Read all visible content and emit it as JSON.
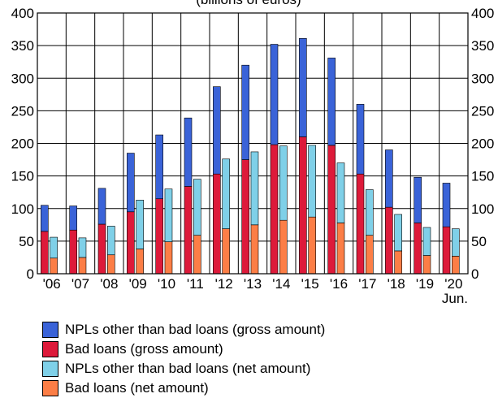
{
  "chart_data": {
    "type": "bar",
    "title": "(billions of euros)",
    "categories": [
      "'06",
      "'07",
      "'08",
      "'09",
      "'10",
      "'11",
      "'12",
      "'13",
      "'14",
      "'15",
      "'16",
      "'17",
      "'18",
      "'19",
      "'20"
    ],
    "x_note": "Jun.",
    "ylim": [
      0,
      400
    ],
    "yticks": [
      0,
      50,
      100,
      150,
      200,
      250,
      300,
      350,
      400
    ],
    "grid": true,
    "legend_position": "bottom",
    "stacks": [
      {
        "stack": "gross",
        "series": [
          {
            "name": "Bad loans (gross amount)",
            "color": "#dd1a3a",
            "values": [
              65,
              67,
              76,
              95,
              115,
              134,
              153,
              175,
              198,
              210,
              197,
              153,
              102,
              78,
              72
            ]
          },
          {
            "name": "NPLs other than bad loans (gross amount)",
            "color": "#3a63d8",
            "values": [
              40,
              37,
              55,
              90,
              98,
              105,
              134,
              145,
              154,
              151,
              134,
              107,
              88,
              70,
              67
            ]
          }
        ],
        "totals": [
          105,
          104,
          131,
          185,
          213,
          239,
          287,
          320,
          352,
          361,
          331,
          260,
          190,
          148,
          139
        ]
      },
      {
        "stack": "net",
        "series": [
          {
            "name": "Bad loans (net amount)",
            "color": "#fc7e46",
            "values": [
              24,
              25,
              29,
              38,
              49,
              59,
              69,
              75,
              82,
              87,
              78,
              59,
              35,
              28,
              27
            ]
          },
          {
            "name": "NPLs other than bad loans (net amount)",
            "color": "#7fd0e8",
            "values": [
              32,
              30,
              44,
              75,
              81,
              86,
              107,
              112,
              114,
              110,
              92,
              70,
              56,
              43,
              42
            ]
          }
        ],
        "totals": [
          56,
          55,
          73,
          113,
          130,
          145,
          176,
          187,
          196,
          197,
          170,
          129,
          91,
          71,
          69
        ]
      }
    ],
    "legend": [
      {
        "label": "NPLs other than bad loans (gross amount)",
        "color": "#3a63d8"
      },
      {
        "label": "Bad loans (gross amount)",
        "color": "#dd1a3a"
      },
      {
        "label": "NPLs other than bad loans (net amount)",
        "color": "#7fd0e8"
      },
      {
        "label": "Bad loans (net amount)",
        "color": "#fc7e46"
      }
    ]
  }
}
